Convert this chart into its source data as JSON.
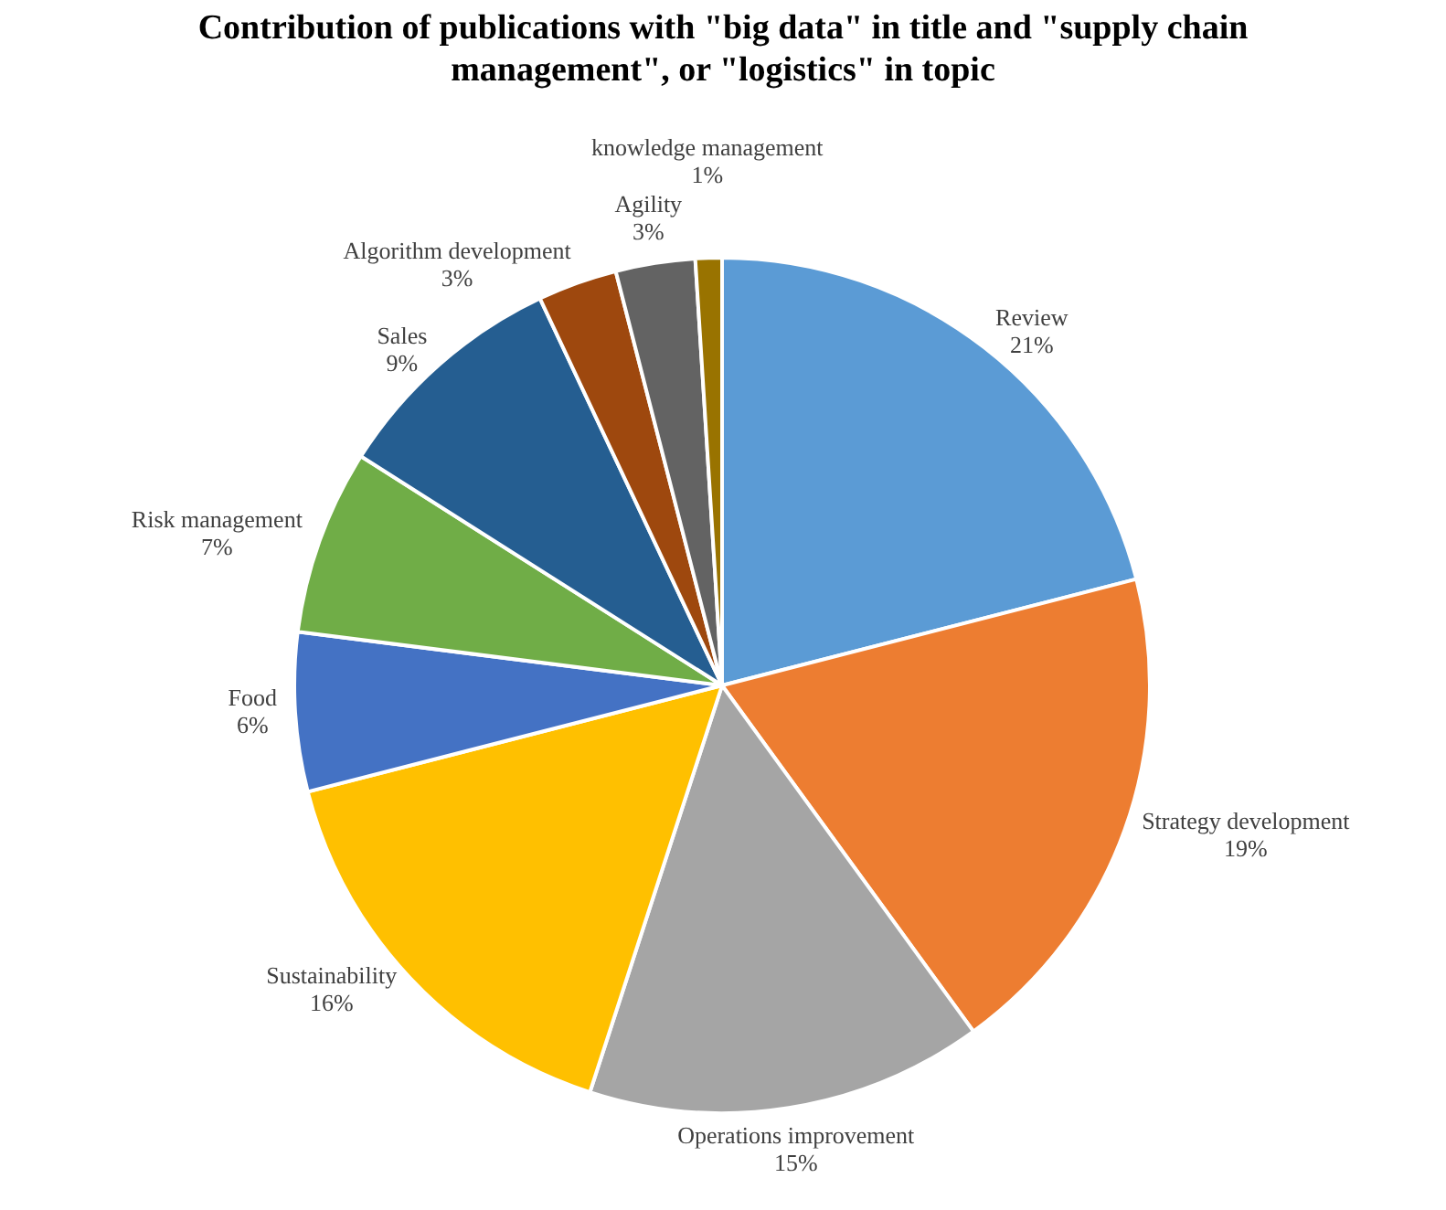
{
  "chart_data": {
    "type": "pie",
    "title": "Contribution of publications with \"big data\" in title and \"supply chain management\", or \"logistics\" in topic",
    "categories": [
      "Review",
      "Strategy development",
      "Operations improvement",
      "Sustainability",
      "Food",
      "Risk management",
      "Sales",
      "Algorithm development",
      "Agility",
      "knowledge management"
    ],
    "values": [
      21,
      19,
      15,
      16,
      6,
      7,
      9,
      3,
      3,
      1
    ],
    "value_labels": [
      "21%",
      "19%",
      "15%",
      "16%",
      "6%",
      "7%",
      "9%",
      "3%",
      "3%",
      "1%"
    ],
    "colors": [
      "#5b9bd5",
      "#ed7d31",
      "#a5a5a5",
      "#ffc000",
      "#4472c4",
      "#70ad47",
      "#255e91",
      "#9e480e",
      "#636363",
      "#997300"
    ],
    "legend": false
  }
}
